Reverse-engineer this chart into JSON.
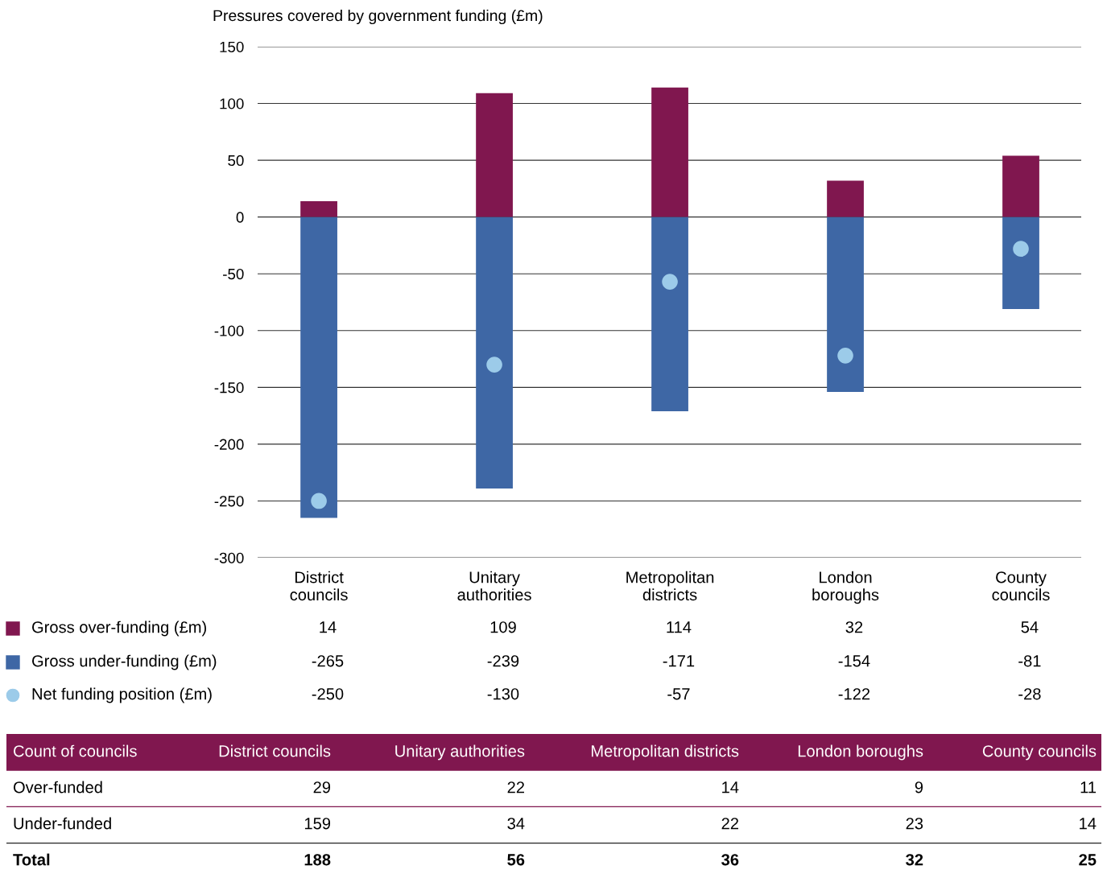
{
  "chart_data": [
    {
      "type": "bar",
      "ylabel": "Pressures covered by government funding (£m)",
      "categories": [
        "District\ncouncils",
        "Unitary\nauthorities",
        "Metropolitan\ndistricts",
        "London\nboroughs",
        "County\ncouncils"
      ],
      "stacked": true,
      "ylim": [
        -300,
        150
      ],
      "yticks": [
        -300,
        -250,
        -200,
        -150,
        -100,
        -50,
        0,
        50,
        100,
        150
      ],
      "grid": "y",
      "legend": "bottom",
      "data_labels": true,
      "series": [
        {
          "name": "Gross over-funding (£m)",
          "color": "#80174f",
          "values": [
            14,
            109,
            114,
            32,
            54
          ]
        },
        {
          "name": "Gross under-funding (£m)",
          "color": "#3e67a5",
          "values": [
            -265,
            -239,
            -171,
            -154,
            -81
          ]
        },
        {
          "name": "Net funding position (£m)",
          "type": "scatter",
          "color": "#9ccbe9",
          "marker": "circle",
          "x": [
            "District\ncouncils",
            "Unitary\nauthorities",
            "Metropolitan\ndistricts",
            "London\nboroughs",
            "County\ncouncils"
          ],
          "values": [
            -250,
            -130,
            -57,
            -122,
            -28
          ]
        }
      ]
    },
    {
      "type": "other",
      "title": "Count of councils",
      "categories": [
        "District councils",
        "Unitary authorities",
        "Metropolitan districts",
        "London boroughs",
        "County councils"
      ],
      "data_labels": true,
      "series": [
        {
          "name": "Over-funded",
          "values": [
            29,
            22,
            14,
            9,
            11
          ]
        },
        {
          "name": "Under-funded",
          "values": [
            159,
            34,
            22,
            23,
            14
          ]
        },
        {
          "name": "Total",
          "values": [
            188,
            56,
            36,
            32,
            25
          ]
        }
      ]
    }
  ]
}
